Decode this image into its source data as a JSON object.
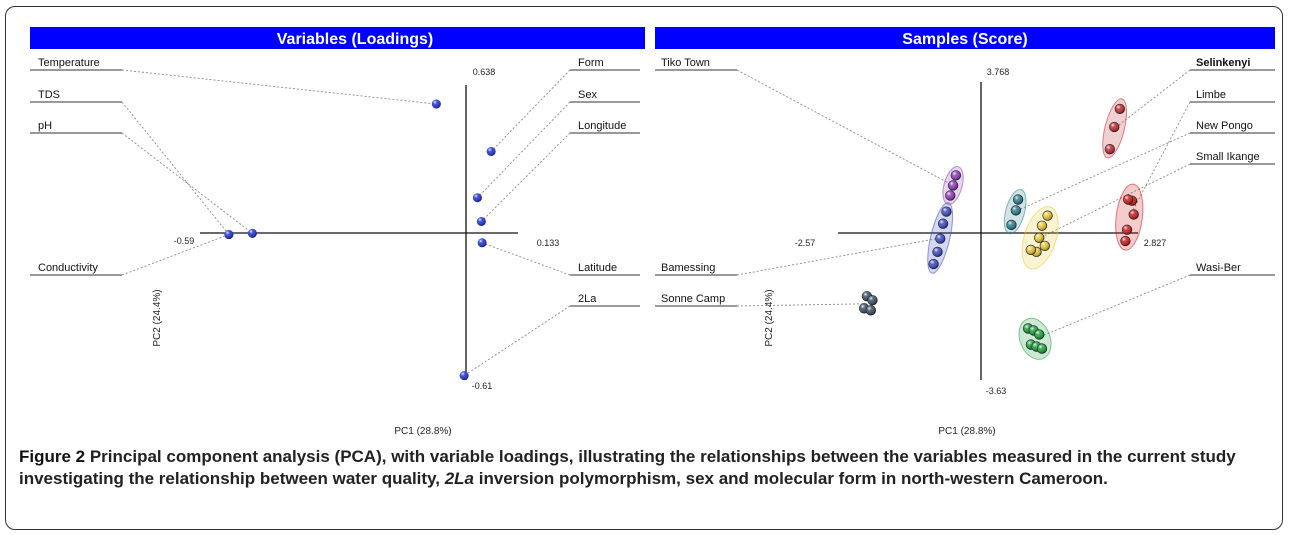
{
  "figure": {
    "caption_label": "Figure 2",
    "caption_pre": " Principal component analysis (PCA), with variable loadings, illustrating the relationships between the variables measured in the current study investigating the relationship between water quality, ",
    "caption_italic": "2La",
    "caption_post": " inversion polymorphism, sex and molecular form in north-western Cameroon.",
    "header_color": "#0000ff",
    "header_text_color": "#ffffff"
  },
  "chart_data": [
    {
      "type": "scatter",
      "title": "Variables (Loadings)",
      "xlabel": "PC1 (28.8%)",
      "ylabel": "PC2 (24.4%)",
      "xlim": [
        -0.59,
        0.133
      ],
      "ylim": [
        -0.61,
        0.638
      ],
      "tick_labels": {
        "x_min": "-0.59",
        "x_max": "0.133",
        "y_max": "0.638",
        "y_min": "-0.61"
      },
      "point_color": "#1a2fd0",
      "labels": [
        "Temperature",
        "TDS",
        "pH",
        "Conductivity",
        "Form",
        "Sex",
        "Longitude",
        "Latitude",
        "2La"
      ],
      "points": [
        {
          "label": "Temperature",
          "x": -0.045,
          "y": 0.545
        },
        {
          "label": "TDS",
          "x": -0.575,
          "y": -0.005
        },
        {
          "label": "pH",
          "x": -0.515,
          "y": 0.0
        },
        {
          "label": "Conductivity",
          "x": -0.575,
          "y": -0.005
        },
        {
          "label": "Form",
          "x": 0.095,
          "y": 0.345
        },
        {
          "label": "Sex",
          "x": 0.06,
          "y": 0.15
        },
        {
          "label": "Longitude",
          "x": 0.07,
          "y": 0.05
        },
        {
          "label": "Latitude",
          "x": 0.072,
          "y": -0.04
        },
        {
          "label": "2La",
          "x": 0.026,
          "y": -0.6
        }
      ]
    },
    {
      "type": "scatter",
      "title": "Samples (Score)",
      "xlabel": "PC1 (28.8%)",
      "ylabel": "PC2 (24.4%)",
      "xlim": [
        -2.57,
        2.827
      ],
      "ylim": [
        -3.63,
        3.768
      ],
      "tick_labels": {
        "x_min": "-2.57",
        "x_max": "2.827",
        "y_max": "3.768",
        "y_min": "-3.63"
      },
      "labels": [
        "Tiko Town",
        "Bamessing",
        "Sonne Camp",
        "Selinkenyi",
        "Limbe",
        "New Pongo",
        "Small Ikange",
        "Wasi-Ber"
      ],
      "series": [
        {
          "name": "Selinkenyi",
          "color": "#c0282e",
          "ellipse": true,
          "x": [
            2.5,
            2.4,
            2.32
          ],
          "y": [
            3.1,
            2.65,
            2.1
          ]
        },
        {
          "name": "Limbe",
          "color": "#d01818",
          "ellipse": true,
          "x": [
            2.72,
            2.65,
            2.75,
            2.63,
            2.6
          ],
          "y": [
            0.82,
            0.85,
            0.48,
            0.1,
            -0.18
          ]
        },
        {
          "name": "New Pongo",
          "color": "#2a7e8e",
          "ellipse": true,
          "x": [
            0.67,
            0.63,
            0.55
          ],
          "y": [
            0.85,
            0.58,
            0.22
          ]
        },
        {
          "name": "Small Ikange",
          "color": "#e8c830",
          "ellipse": true,
          "x": [
            1.2,
            1.1,
            1.05,
            1.0,
            1.15,
            0.9
          ],
          "y": [
            0.45,
            0.2,
            -0.1,
            -0.45,
            -0.3,
            -0.4
          ]
        },
        {
          "name": "Tiko Town",
          "color": "#8e3ab8",
          "ellipse": true,
          "x": [
            -0.45,
            -0.5,
            -0.55
          ],
          "y": [
            1.45,
            1.2,
            0.95
          ]
        },
        {
          "name": "Bamessing",
          "color": "#3a48c0",
          "ellipse": true,
          "x": [
            -0.62,
            -0.68,
            -0.73,
            -0.78,
            -0.85
          ],
          "y": [
            0.55,
            0.25,
            -0.12,
            -0.45,
            -0.75
          ]
        },
        {
          "name": "Sonne Camp",
          "color": "#3a4e64",
          "ellipse": false,
          "x": [
            -2.05,
            -1.95,
            -2.1,
            -1.98
          ],
          "y": [
            -1.55,
            -1.65,
            -1.85,
            -1.9
          ]
        },
        {
          "name": "Wasi-Ber",
          "color": "#18a038",
          "ellipse": true,
          "x": [
            0.85,
            0.95,
            1.05,
            0.9,
            1.0,
            1.1
          ],
          "y": [
            -2.35,
            -2.4,
            -2.5,
            -2.75,
            -2.8,
            -2.85
          ]
        }
      ]
    }
  ]
}
